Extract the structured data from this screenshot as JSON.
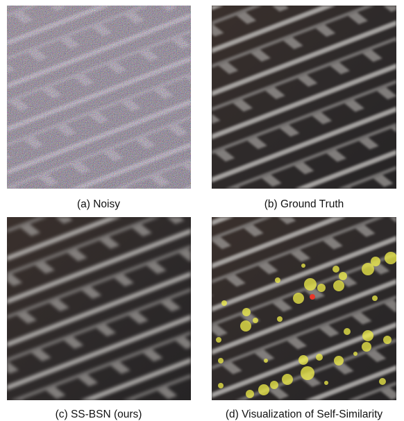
{
  "panels": [
    {
      "caption": "(a) Noisy"
    },
    {
      "caption": "(b) Ground Truth"
    },
    {
      "caption": "(c) SS-BSN (ours)"
    },
    {
      "caption": "(d) Visualization of Self-Similarity"
    }
  ]
}
